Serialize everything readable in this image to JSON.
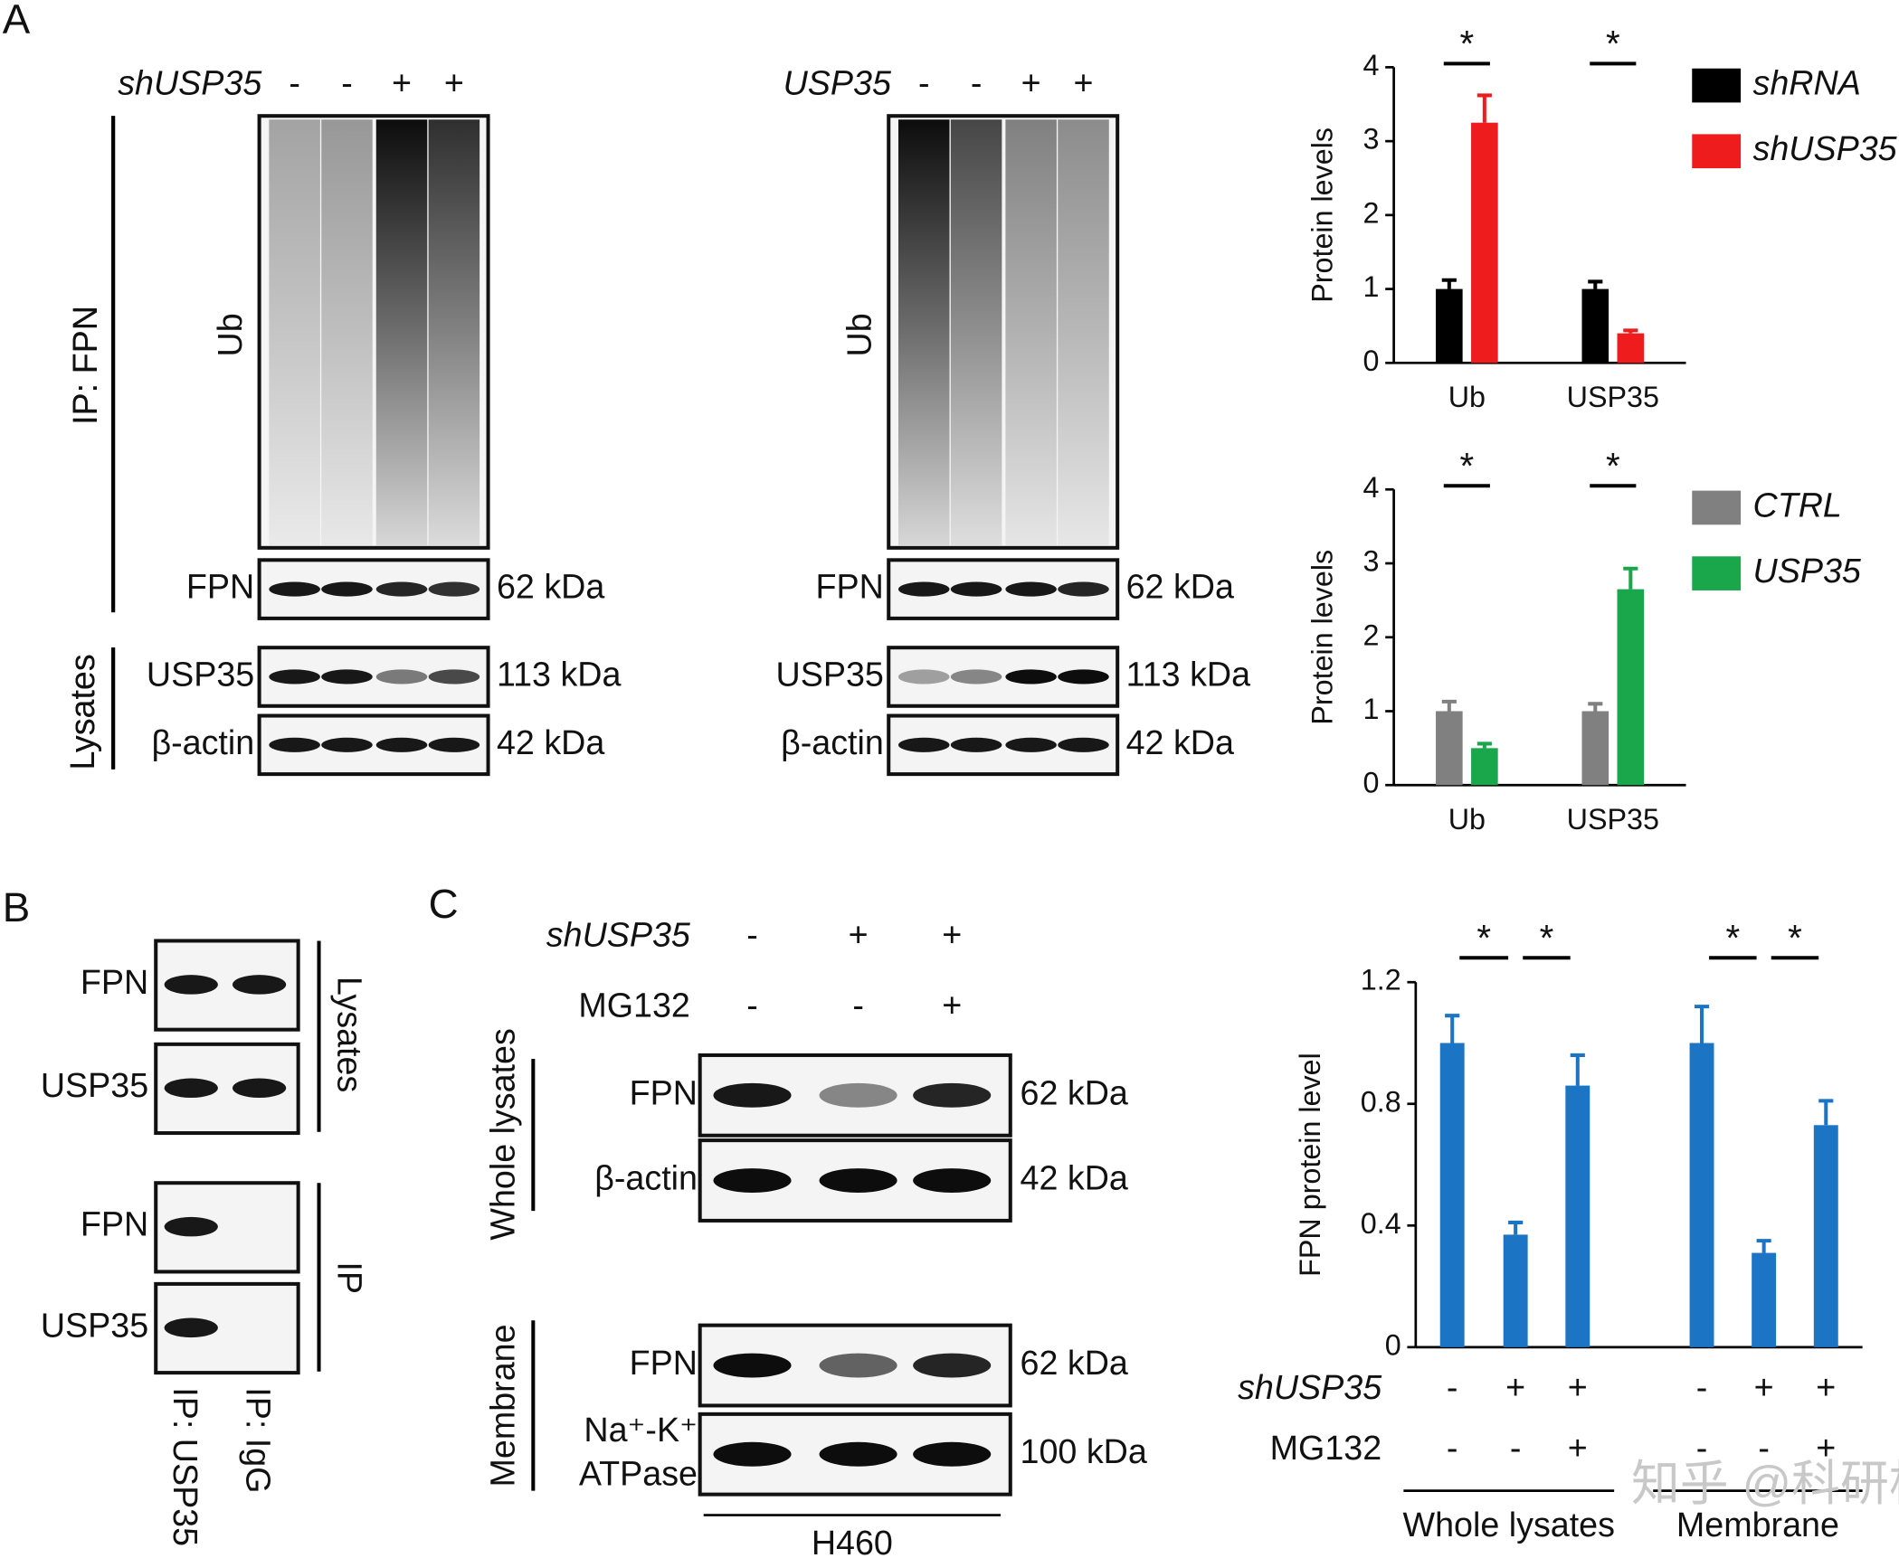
{
  "panel_labels": [
    "A",
    "B",
    "C"
  ],
  "blots_a": [
    {
      "condition": "shUSP35",
      "signs": [
        "-",
        "-",
        "+",
        "+"
      ],
      "ip_label": "IP: FPN",
      "lysates_label": "Lysates",
      "rows": [
        {
          "name": "Ub"
        },
        {
          "name": "FPN",
          "size": "62 kDa"
        },
        {
          "name": "USP35",
          "size": "113 kDa"
        },
        {
          "name": "β-actin",
          "size": "42 kDa"
        }
      ]
    },
    {
      "condition": "USP35",
      "signs": [
        "-",
        "-",
        "+",
        "+"
      ],
      "ip_label": "IP: FPN",
      "lysates_label": "Lysates",
      "rows": [
        {
          "name": "Ub"
        },
        {
          "name": "FPN",
          "size": "62 kDa"
        },
        {
          "name": "USP35",
          "size": "113 kDa"
        },
        {
          "name": "β-actin",
          "size": "42 kDa"
        }
      ]
    }
  ],
  "blot_b": {
    "rows": [
      "FPN",
      "USP35",
      "FPN",
      "USP35"
    ],
    "groups": [
      "Lysates",
      "IP"
    ],
    "lanes": [
      "IP: USP35",
      "IP: IgG"
    ]
  },
  "blot_c": {
    "conditions": [
      {
        "label": "shUSP35",
        "signs": [
          "-",
          "+",
          "+"
        ]
      },
      {
        "label": "MG132",
        "signs": [
          "-",
          "-",
          "+"
        ]
      }
    ],
    "groups": [
      "Whole lysates",
      "Membrane"
    ],
    "rows": [
      {
        "name": [
          "FPN"
        ],
        "size": "62 kDa"
      },
      {
        "name": [
          "β-actin"
        ],
        "size": "42 kDa"
      },
      {
        "name": [
          "FPN"
        ],
        "size": "62 kDa"
      },
      {
        "name": [
          "Na⁺-K⁺",
          "ATPase"
        ],
        "size": "100 kDa"
      }
    ],
    "cell_line": "H460"
  },
  "chart_data": [
    {
      "type": "bar",
      "y_label": "Protein levels",
      "categories": [
        "Ub",
        "USP35"
      ],
      "series": [
        {
          "name": "shRNA",
          "color": "#000000",
          "values": [
            1,
            1
          ],
          "errors": [
            0.12,
            0.1
          ]
        },
        {
          "name": "shUSP35",
          "color": "#ee1c1c",
          "values": [
            3.25,
            0.4
          ],
          "errors": [
            0.37,
            0.04
          ]
        }
      ],
      "ylim": [
        0,
        4
      ],
      "yticks": [
        0,
        1,
        2,
        3,
        4
      ],
      "significance": [
        "*",
        "*"
      ]
    },
    {
      "type": "bar",
      "y_label": "Protein levels",
      "categories": [
        "Ub",
        "USP35"
      ],
      "series": [
        {
          "name": "CTRL",
          "color": "#808080",
          "values": [
            1,
            1
          ],
          "errors": [
            0.13,
            0.1
          ]
        },
        {
          "name": "USP35",
          "color": "#1aa64a",
          "values": [
            0.5,
            2.65
          ],
          "errors": [
            0.06,
            0.28
          ]
        }
      ],
      "ylim": [
        0,
        4
      ],
      "yticks": [
        0,
        1,
        2,
        3,
        4
      ],
      "significance": [
        "*",
        "*"
      ]
    },
    {
      "type": "bar",
      "y_label": "FPN protein level",
      "color": "#1b75c4",
      "values": [
        1,
        0.37,
        0.86,
        1,
        0.31,
        0.73
      ],
      "errors": [
        0.09,
        0.04,
        0.1,
        0.12,
        0.04,
        0.08
      ],
      "ylim": [
        0,
        1.2
      ],
      "yticks": [
        0,
        0.4,
        0.8,
        1.2
      ],
      "conditions": [
        {
          "label": "shUSP35",
          "signs": [
            "-",
            "+",
            "+",
            "-",
            "+",
            "+"
          ]
        },
        {
          "label": "MG132",
          "signs": [
            "-",
            "-",
            "+",
            "-",
            "-",
            "+"
          ]
        }
      ],
      "groups": [
        "Whole lysates",
        "Membrane"
      ],
      "significance": [
        "*",
        "*",
        "*",
        "*"
      ]
    }
  ],
  "watermark": "知乎 @科研根号三"
}
